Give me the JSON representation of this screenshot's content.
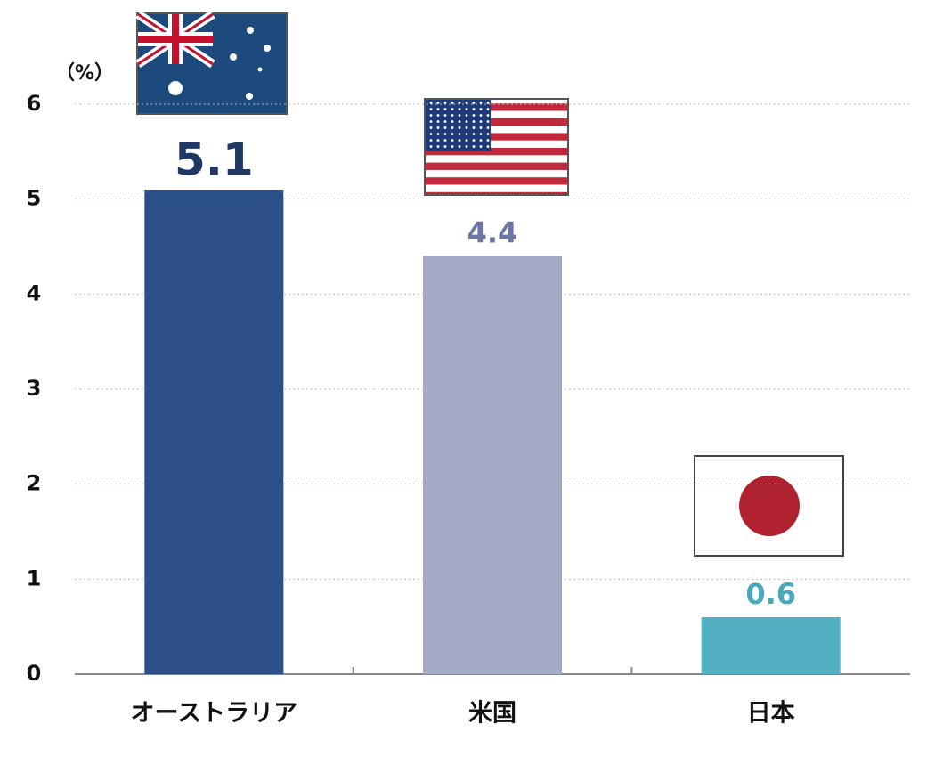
{
  "chart_data": {
    "type": "bar",
    "unit_label": "（%）",
    "categories": [
      "オーストラリア",
      "米国",
      "日本"
    ],
    "values": [
      5.1,
      4.4,
      0.6
    ],
    "colors": [
      "#2b4f89",
      "#a2aac6",
      "#52aec1"
    ],
    "label_colors": [
      "#1f3864",
      "#6a75a8",
      "#4aa8bd"
    ],
    "ylim": [
      0,
      6
    ],
    "yticks": [
      0,
      1,
      2,
      3,
      4,
      5,
      6
    ],
    "grid": true
  }
}
